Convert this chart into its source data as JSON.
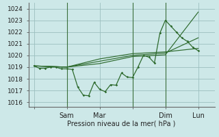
{
  "title": "Pression niveau de la mer( hPa )",
  "ylabel_ticks": [
    1016,
    1017,
    1018,
    1019,
    1020,
    1021,
    1022,
    1023,
    1024
  ],
  "ylim": [
    1015.6,
    1024.5
  ],
  "background_color": "#cde8e8",
  "grid_color": "#9bbfbf",
  "line_color": "#2d6a2d",
  "vline_color": "#3a6e3a",
  "x_ticks_pos": [
    0,
    12,
    24,
    36,
    48,
    60
  ],
  "x_tick_labels": [
    "",
    "Sam",
    "Mar",
    "",
    "Dim",
    "Lun"
  ],
  "xlim": [
    -2,
    66
  ],
  "series_main": {
    "x": [
      0,
      2,
      4,
      6,
      8,
      10,
      12,
      14,
      16,
      18,
      20,
      22,
      24,
      26,
      28,
      30,
      32,
      34,
      36,
      38,
      40,
      42,
      44,
      46,
      48,
      50,
      52,
      54,
      56,
      58,
      60
    ],
    "y": [
      1019.1,
      1018.9,
      1018.9,
      1019.0,
      1019.0,
      1018.85,
      1018.85,
      1018.8,
      1017.3,
      1016.6,
      1016.55,
      1017.7,
      1017.1,
      1016.9,
      1017.5,
      1017.45,
      1018.5,
      1018.15,
      1018.1,
      1019.0,
      1020.0,
      1019.85,
      1019.35,
      1021.9,
      1023.0,
      1022.5,
      1022.0,
      1021.5,
      1021.2,
      1020.7,
      1020.4
    ]
  },
  "series_forecast": [
    {
      "x": [
        0,
        12,
        24,
        36,
        48,
        60
      ],
      "y": [
        1019.1,
        1019.0,
        1019.3,
        1019.9,
        1020.05,
        1023.7
      ]
    },
    {
      "x": [
        0,
        12,
        24,
        36,
        48,
        60
      ],
      "y": [
        1019.1,
        1019.0,
        1019.5,
        1020.0,
        1020.2,
        1021.5
      ]
    },
    {
      "x": [
        0,
        12,
        24,
        36,
        48,
        60
      ],
      "y": [
        1019.1,
        1019.0,
        1019.7,
        1020.15,
        1020.3,
        1020.6
      ]
    }
  ],
  "vlines": [
    12,
    36,
    48
  ]
}
